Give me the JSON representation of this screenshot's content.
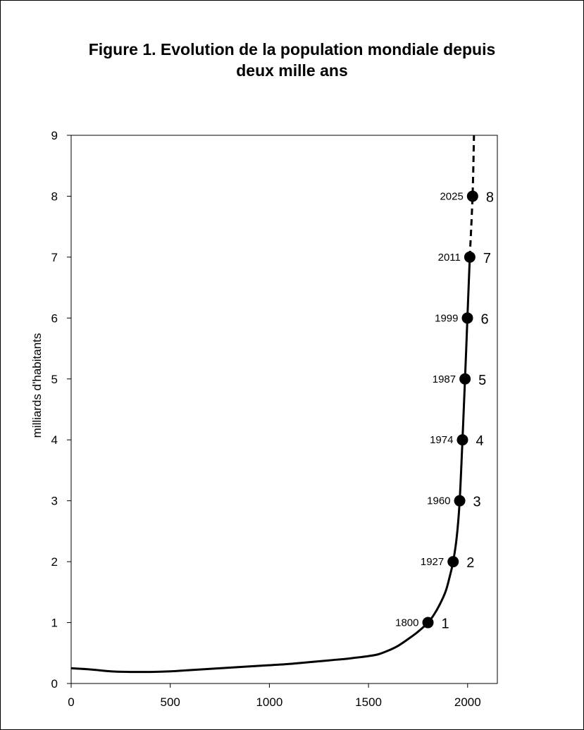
{
  "chart_data": {
    "type": "line",
    "title_lines": [
      "Figure 1. Evolution de la population mondiale depuis",
      "deux mille ans"
    ],
    "xlabel": "",
    "ylabel": "milliards d'habitants",
    "xlim": [
      0,
      2150
    ],
    "ylim": [
      0,
      9
    ],
    "x_ticks": [
      "0",
      "500",
      "1000",
      "1500",
      "2000"
    ],
    "y_ticks": [
      "0",
      "1",
      "2",
      "3",
      "4",
      "5",
      "6",
      "7",
      "8",
      "9"
    ],
    "grid": false,
    "series": [
      {
        "style": "solid",
        "x": [
          0,
          100,
          200,
          300,
          400,
          500,
          600,
          700,
          800,
          900,
          1000,
          1100,
          1200,
          1300,
          1400,
          1500,
          1550,
          1600,
          1650,
          1700,
          1750,
          1800,
          1830,
          1860,
          1890,
          1910,
          1927,
          1945,
          1960,
          1974,
          1987,
          1999,
          2011
        ],
        "y": [
          0.25,
          0.23,
          0.2,
          0.19,
          0.19,
          0.2,
          0.22,
          0.24,
          0.26,
          0.28,
          0.3,
          0.32,
          0.35,
          0.38,
          0.41,
          0.45,
          0.48,
          0.54,
          0.62,
          0.73,
          0.85,
          1.0,
          1.13,
          1.3,
          1.52,
          1.76,
          2.0,
          2.4,
          3.0,
          4.0,
          5.0,
          6.0,
          7.0
        ]
      },
      {
        "style": "dashed",
        "x": [
          2011,
          2025,
          2032
        ],
        "y": [
          7.0,
          8.0,
          9.0
        ]
      }
    ],
    "points": [
      {
        "year": 2025,
        "x": 2025,
        "y": 8,
        "year_label": "2025",
        "number_label": "8"
      },
      {
        "year": 2011,
        "x": 2011,
        "y": 7,
        "year_label": "2011",
        "number_label": "7"
      },
      {
        "year": 1999,
        "x": 1999,
        "y": 6,
        "year_label": "1999",
        "number_label": "6"
      },
      {
        "year": 1987,
        "x": 1987,
        "y": 5,
        "year_label": "1987",
        "number_label": "5"
      },
      {
        "year": 1974,
        "x": 1974,
        "y": 4,
        "year_label": "1974",
        "number_label": "4"
      },
      {
        "year": 1960,
        "x": 1960,
        "y": 3,
        "year_label": "1960",
        "number_label": "3"
      },
      {
        "year": 1927,
        "x": 1927,
        "y": 2,
        "year_label": "1927",
        "number_label": "2"
      },
      {
        "year": 1800,
        "x": 1800,
        "y": 1,
        "year_label": "1800",
        "number_label": "1"
      }
    ]
  }
}
